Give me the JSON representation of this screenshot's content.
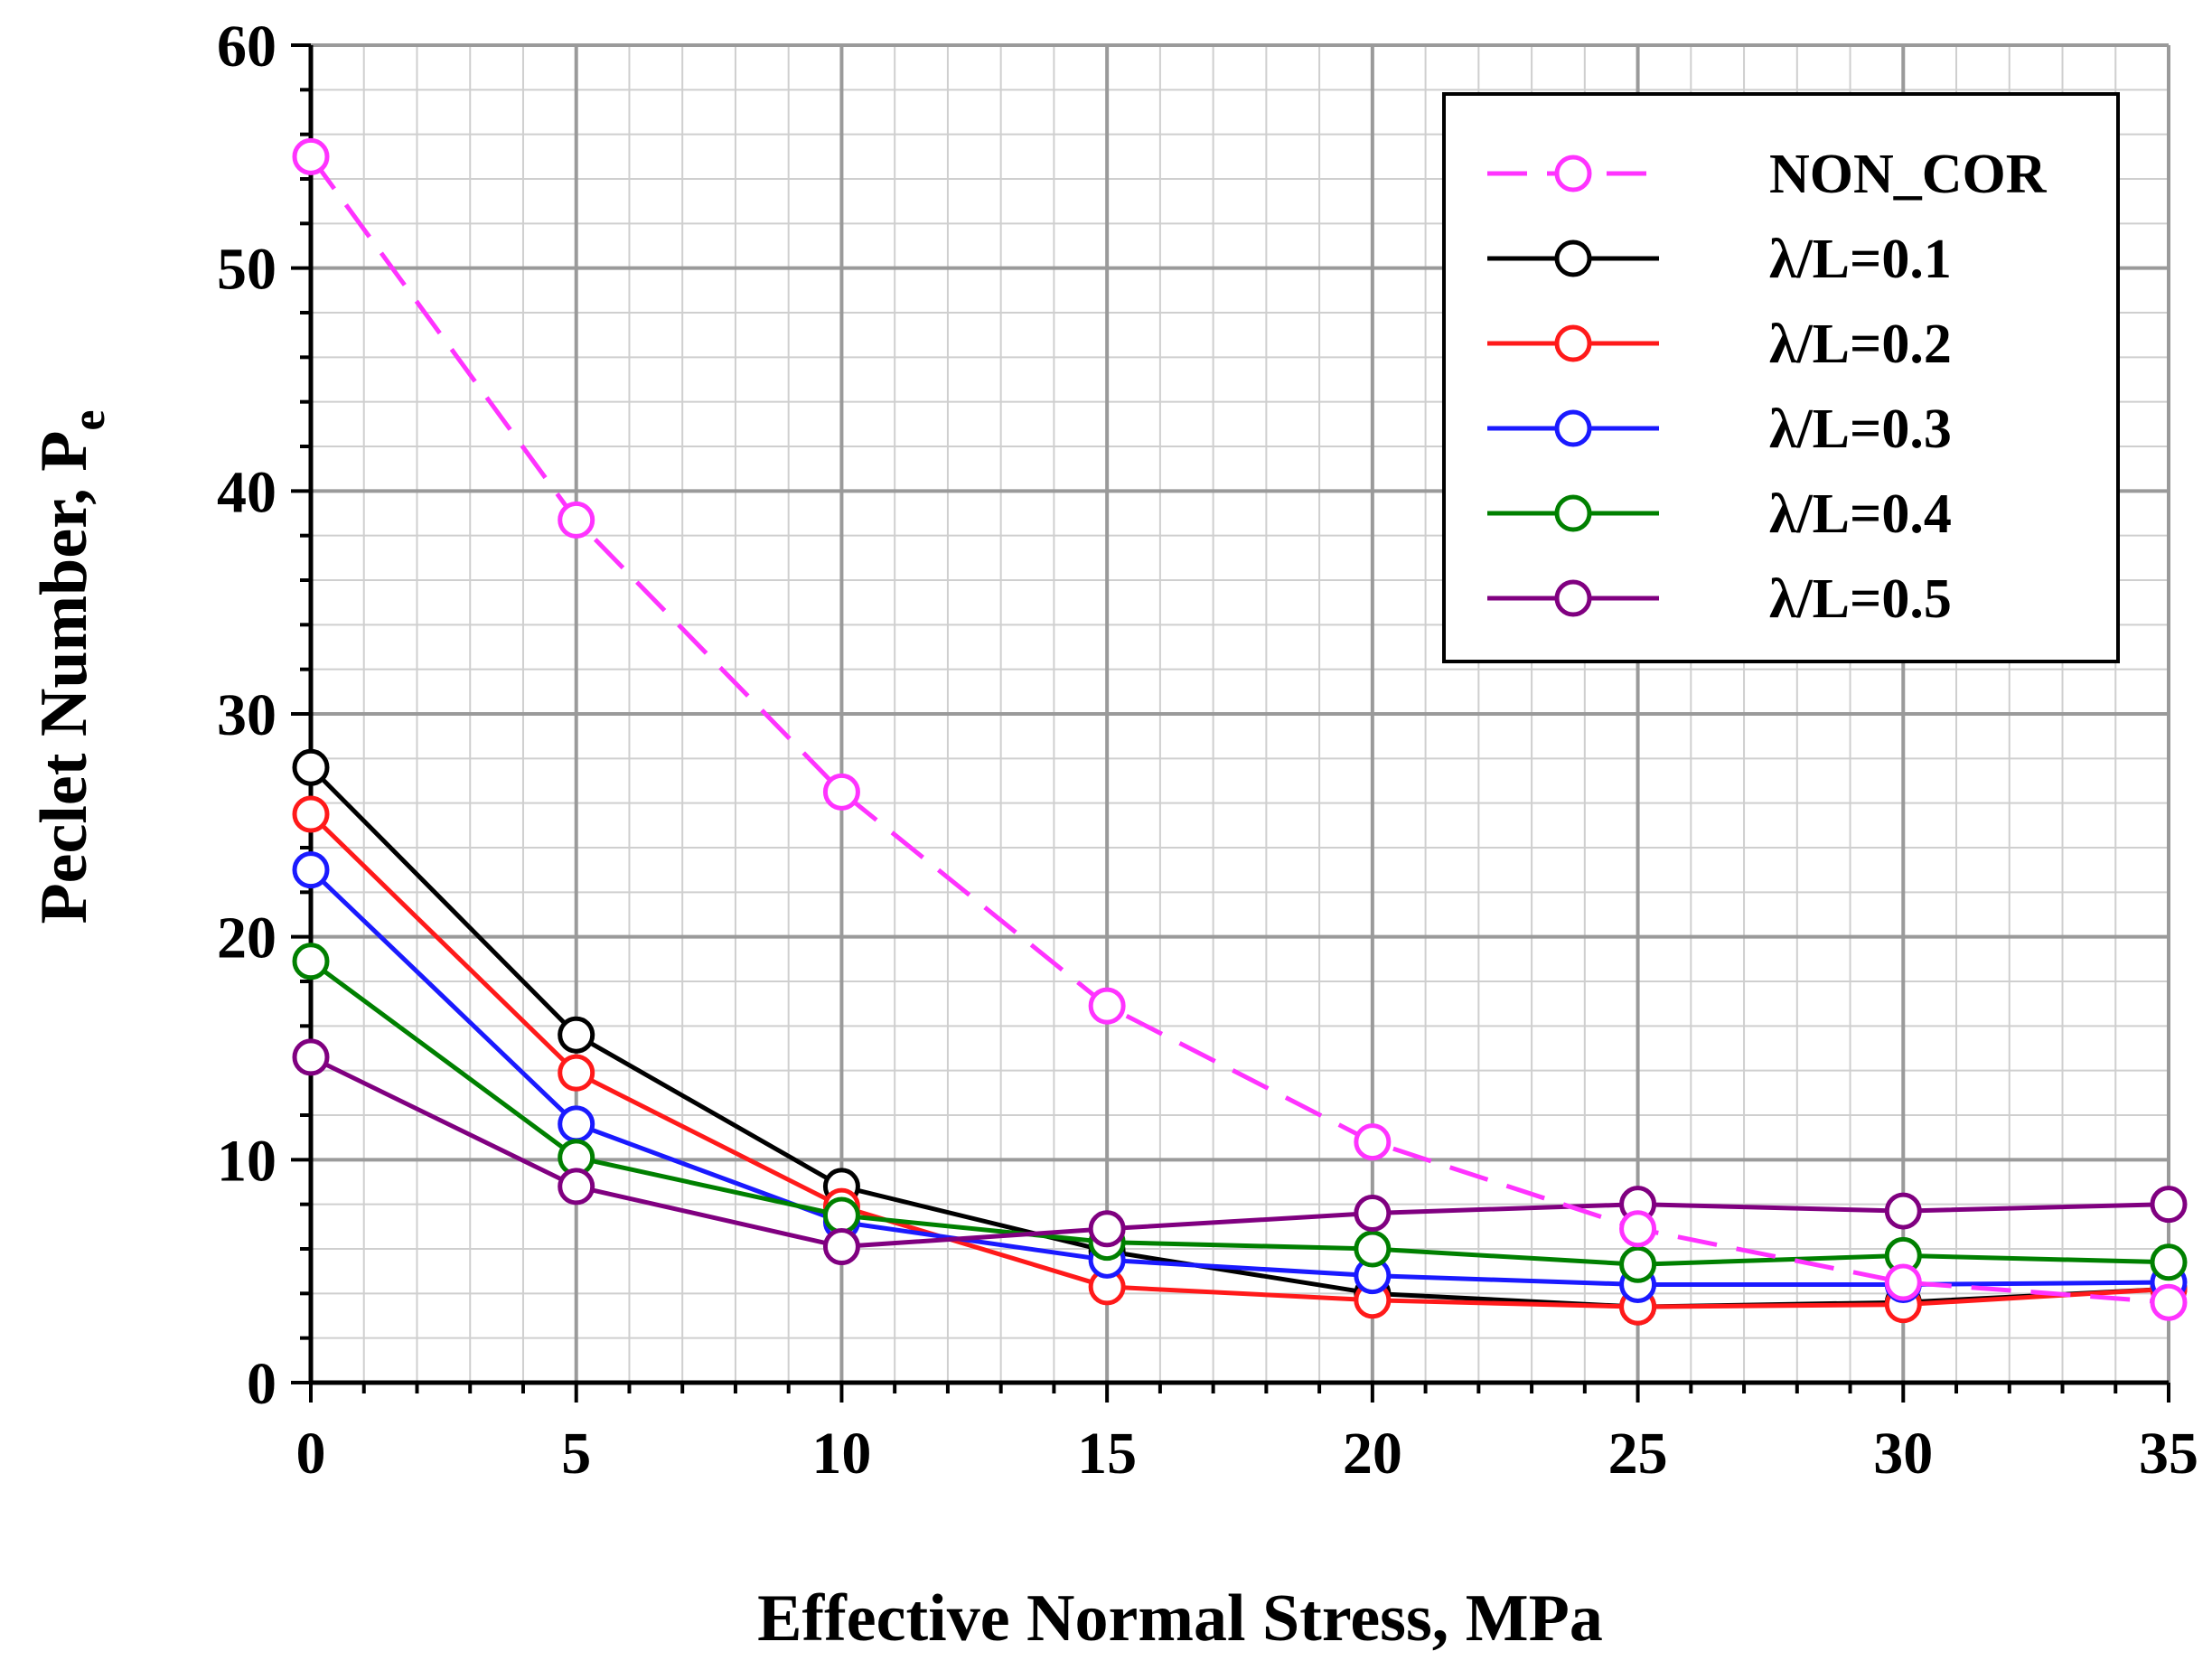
{
  "chart_data": {
    "type": "line",
    "title": "",
    "xlabel": "Effective Normal Stress, MPa",
    "ylabel_main": "Peclet Number, P",
    "ylabel_sub": "e",
    "xlim": [
      0,
      35
    ],
    "ylim": [
      0,
      60
    ],
    "x_major_ticks": [
      0,
      5,
      10,
      15,
      20,
      25,
      30,
      35
    ],
    "x_tick_labels": [
      "0",
      "5",
      "10",
      "15",
      "20",
      "25",
      "30",
      "35"
    ],
    "y_major_ticks": [
      0,
      10,
      20,
      30,
      40,
      50,
      60
    ],
    "y_tick_labels": [
      "0",
      "10",
      "20",
      "30",
      "40",
      "50",
      "60"
    ],
    "x_minor_step": 1,
    "y_minor_step": 2,
    "grid": true,
    "legend_position": "top-right",
    "series": [
      {
        "name": "NON_COR",
        "color": "#ff33ff",
        "dashed": true,
        "x": [
          0,
          5,
          10,
          15,
          20,
          25,
          30,
          35
        ],
        "values": [
          55,
          38.7,
          26.5,
          16.9,
          10.8,
          6.9,
          4.5,
          3.6
        ]
      },
      {
        "name": "λ/L=0.1",
        "color": "#000000",
        "dashed": false,
        "x": [
          0,
          5,
          10,
          15,
          20,
          25,
          30,
          35
        ],
        "values": [
          27.6,
          15.6,
          8.8,
          5.9,
          4.0,
          3.4,
          3.6,
          4.2
        ]
      },
      {
        "name": "λ/L=0.2",
        "color": "#ff1a1a",
        "dashed": false,
        "x": [
          0,
          5,
          10,
          15,
          20,
          25,
          30,
          35
        ],
        "values": [
          25.5,
          13.9,
          7.9,
          4.3,
          3.7,
          3.4,
          3.5,
          4.2
        ]
      },
      {
        "name": "λ/L=0.3",
        "color": "#1a1aff",
        "dashed": false,
        "x": [
          0,
          5,
          10,
          15,
          20,
          25,
          30,
          35
        ],
        "values": [
          23.0,
          11.6,
          7.2,
          5.5,
          4.8,
          4.4,
          4.4,
          4.5
        ]
      },
      {
        "name": "λ/L=0.4",
        "color": "#008000",
        "dashed": false,
        "x": [
          0,
          5,
          10,
          15,
          20,
          25,
          30,
          35
        ],
        "values": [
          18.9,
          10.1,
          7.5,
          6.3,
          6.0,
          5.3,
          5.7,
          5.4
        ]
      },
      {
        "name": "λ/L=0.5",
        "color": "#800080",
        "dashed": false,
        "x": [
          0,
          5,
          10,
          15,
          20,
          25,
          30,
          35
        ],
        "values": [
          14.6,
          8.8,
          6.1,
          6.9,
          7.6,
          8.0,
          7.7,
          8.0
        ]
      }
    ]
  }
}
